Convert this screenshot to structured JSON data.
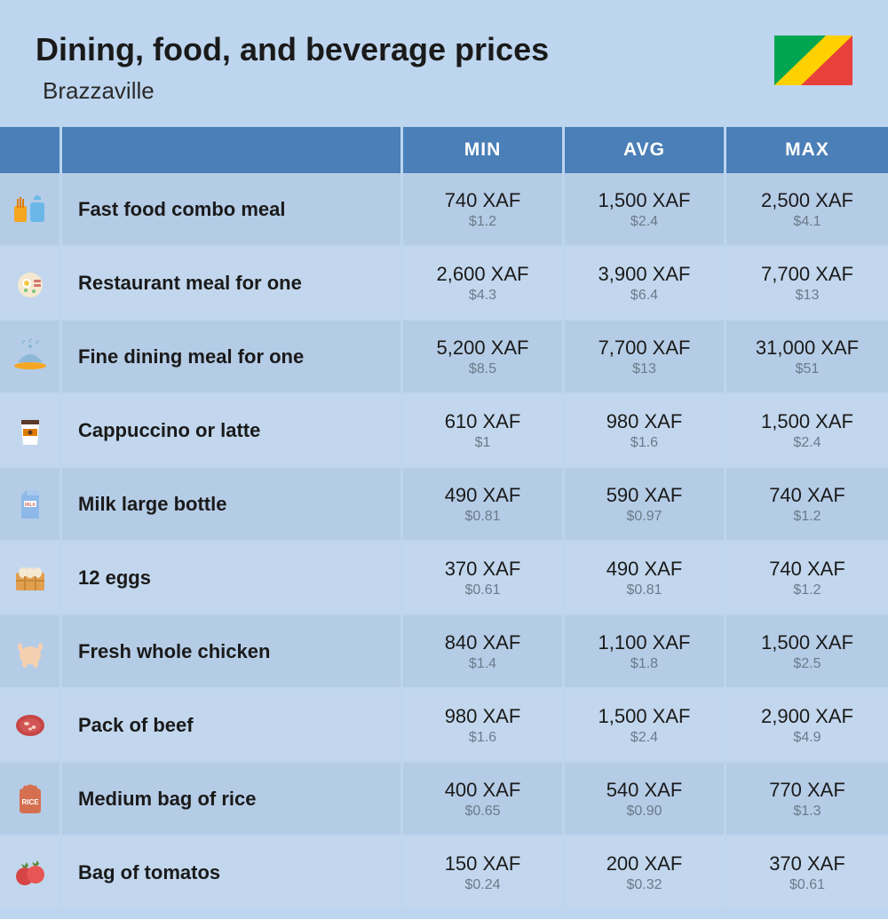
{
  "header": {
    "title": "Dining, food, and beverage prices",
    "subtitle": "Brazzaville",
    "flag_colors": {
      "green": "#00a550",
      "yellow": "#ffd100",
      "red": "#e8403a"
    }
  },
  "columns": {
    "min": "MIN",
    "avg": "AVG",
    "max": "MAX"
  },
  "rows": [
    {
      "icon": "fast-food",
      "label": "Fast food combo meal",
      "min": {
        "xaf": "740 XAF",
        "usd": "$1.2"
      },
      "avg": {
        "xaf": "1,500 XAF",
        "usd": "$2.4"
      },
      "max": {
        "xaf": "2,500 XAF",
        "usd": "$4.1"
      }
    },
    {
      "icon": "restaurant",
      "label": "Restaurant meal for one",
      "min": {
        "xaf": "2,600 XAF",
        "usd": "$4.3"
      },
      "avg": {
        "xaf": "3,900 XAF",
        "usd": "$6.4"
      },
      "max": {
        "xaf": "7,700 XAF",
        "usd": "$13"
      }
    },
    {
      "icon": "fine-dining",
      "label": "Fine dining meal for one",
      "min": {
        "xaf": "5,200 XAF",
        "usd": "$8.5"
      },
      "avg": {
        "xaf": "7,700 XAF",
        "usd": "$13"
      },
      "max": {
        "xaf": "31,000 XAF",
        "usd": "$51"
      }
    },
    {
      "icon": "coffee",
      "label": "Cappuccino or latte",
      "min": {
        "xaf": "610 XAF",
        "usd": "$1"
      },
      "avg": {
        "xaf": "980 XAF",
        "usd": "$1.6"
      },
      "max": {
        "xaf": "1,500 XAF",
        "usd": "$2.4"
      }
    },
    {
      "icon": "milk",
      "label": "Milk large bottle",
      "min": {
        "xaf": "490 XAF",
        "usd": "$0.81"
      },
      "avg": {
        "xaf": "590 XAF",
        "usd": "$0.97"
      },
      "max": {
        "xaf": "740 XAF",
        "usd": "$1.2"
      }
    },
    {
      "icon": "eggs",
      "label": "12 eggs",
      "min": {
        "xaf": "370 XAF",
        "usd": "$0.61"
      },
      "avg": {
        "xaf": "490 XAF",
        "usd": "$0.81"
      },
      "max": {
        "xaf": "740 XAF",
        "usd": "$1.2"
      }
    },
    {
      "icon": "chicken",
      "label": "Fresh whole chicken",
      "min": {
        "xaf": "840 XAF",
        "usd": "$1.4"
      },
      "avg": {
        "xaf": "1,100 XAF",
        "usd": "$1.8"
      },
      "max": {
        "xaf": "1,500 XAF",
        "usd": "$2.5"
      }
    },
    {
      "icon": "beef",
      "label": "Pack of beef",
      "min": {
        "xaf": "980 XAF",
        "usd": "$1.6"
      },
      "avg": {
        "xaf": "1,500 XAF",
        "usd": "$2.4"
      },
      "max": {
        "xaf": "2,900 XAF",
        "usd": "$4.9"
      }
    },
    {
      "icon": "rice",
      "label": "Medium bag of rice",
      "min": {
        "xaf": "400 XAF",
        "usd": "$0.65"
      },
      "avg": {
        "xaf": "540 XAF",
        "usd": "$0.90"
      },
      "max": {
        "xaf": "770 XAF",
        "usd": "$1.3"
      }
    },
    {
      "icon": "tomato",
      "label": "Bag of tomatos",
      "min": {
        "xaf": "150 XAF",
        "usd": "$0.24"
      },
      "avg": {
        "xaf": "200 XAF",
        "usd": "$0.32"
      },
      "max": {
        "xaf": "370 XAF",
        "usd": "$0.61"
      }
    }
  ],
  "styling": {
    "background_color": "#bdd5ee",
    "header_bg": "#4a7fb8",
    "row_alt_1": "#b5cce6",
    "row_alt_2": "#c2d7ed",
    "title_fontsize": 36,
    "subtitle_fontsize": 26
  }
}
